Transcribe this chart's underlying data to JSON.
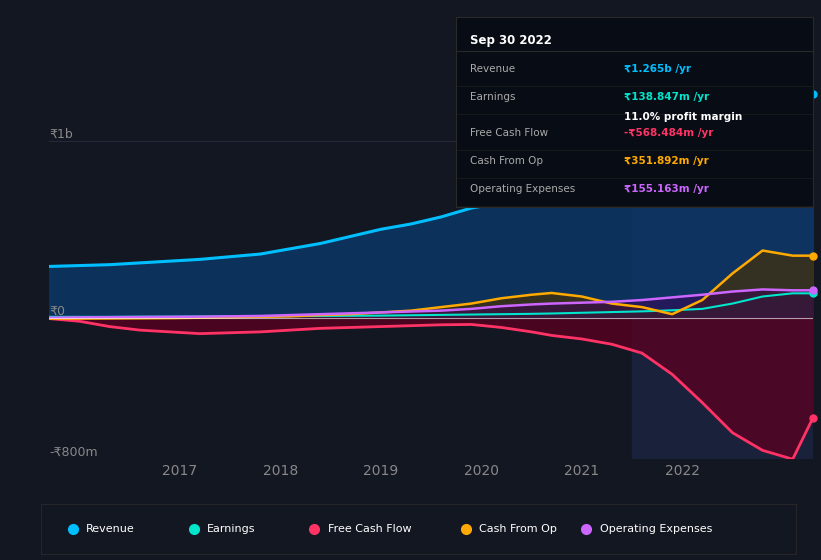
{
  "bg_color": "#131722",
  "info_box": {
    "date": "Sep 30 2022",
    "revenue_label": "Revenue",
    "revenue_val": "₹1.265b /yr",
    "revenue_color": "#00bfff",
    "earnings_label": "Earnings",
    "earnings_val": "₹138.847m /yr",
    "earnings_color": "#00e5cc",
    "margin_val": "11.0% profit margin",
    "margin_color": "#ffffff",
    "fcf_label": "Free Cash Flow",
    "fcf_val": "-₹568.484m /yr",
    "fcf_color": "#ff3366",
    "cashop_label": "Cash From Op",
    "cashop_val": "₹351.892m /yr",
    "cashop_color": "#ffaa00",
    "opex_label": "Operating Expenses",
    "opex_val": "₹155.163m /yr",
    "opex_color": "#cc66ff"
  },
  "ylim": [
    -800,
    1100
  ],
  "xlim": [
    2015.7,
    2023.3
  ],
  "xtick_labels": [
    "2017",
    "2018",
    "2019",
    "2020",
    "2021",
    "2022"
  ],
  "xtick_vals": [
    2017,
    2018,
    2019,
    2020,
    2021,
    2022
  ],
  "highlight_start": 2021.5,
  "highlight_end": 2023.3,
  "revenue_color": "#00bfff",
  "earnings_color": "#00e5cc",
  "fcf_color": "#ff3366",
  "cashop_color": "#ffaa00",
  "opex_color": "#cc66ff",
  "revenue_x": [
    2015.7,
    2016.0,
    2016.3,
    2016.6,
    2016.9,
    2017.2,
    2017.5,
    2017.8,
    2018.1,
    2018.4,
    2018.7,
    2019.0,
    2019.3,
    2019.6,
    2019.9,
    2020.2,
    2020.5,
    2020.7,
    2021.0,
    2021.3,
    2021.6,
    2021.9,
    2022.2,
    2022.5,
    2022.8,
    2023.1,
    2023.3
  ],
  "revenue_y": [
    290,
    295,
    300,
    310,
    320,
    330,
    345,
    360,
    390,
    420,
    460,
    500,
    530,
    570,
    620,
    650,
    660,
    650,
    670,
    700,
    760,
    830,
    940,
    1050,
    1230,
    1265,
    1265
  ],
  "earnings_x": [
    2015.7,
    2016.0,
    2016.3,
    2016.6,
    2016.9,
    2017.2,
    2017.5,
    2017.8,
    2018.1,
    2018.4,
    2018.7,
    2019.0,
    2019.3,
    2019.6,
    2019.9,
    2020.2,
    2020.5,
    2020.7,
    2021.0,
    2021.3,
    2021.6,
    2021.9,
    2022.2,
    2022.5,
    2022.8,
    2023.1,
    2023.3
  ],
  "earnings_y": [
    5,
    5,
    5,
    6,
    6,
    7,
    8,
    8,
    9,
    10,
    11,
    12,
    14,
    16,
    18,
    20,
    22,
    24,
    28,
    32,
    36,
    42,
    50,
    80,
    120,
    138,
    138
  ],
  "fcf_x": [
    2015.7,
    2016.0,
    2016.3,
    2016.6,
    2016.9,
    2017.2,
    2017.5,
    2017.8,
    2018.1,
    2018.4,
    2018.7,
    2019.0,
    2019.3,
    2019.6,
    2019.9,
    2020.2,
    2020.5,
    2020.7,
    2021.0,
    2021.3,
    2021.6,
    2021.9,
    2022.2,
    2022.5,
    2022.8,
    2023.1,
    2023.3
  ],
  "fcf_y": [
    -5,
    -20,
    -50,
    -70,
    -80,
    -90,
    -85,
    -80,
    -70,
    -60,
    -55,
    -50,
    -45,
    -40,
    -38,
    -55,
    -80,
    -100,
    -120,
    -150,
    -200,
    -320,
    -480,
    -650,
    -750,
    -800,
    -568
  ],
  "cashop_x": [
    2015.7,
    2016.0,
    2016.3,
    2016.6,
    2016.9,
    2017.2,
    2017.5,
    2017.8,
    2018.1,
    2018.4,
    2018.7,
    2019.0,
    2019.3,
    2019.6,
    2019.9,
    2020.2,
    2020.5,
    2020.7,
    2021.0,
    2021.3,
    2021.6,
    2021.9,
    2022.2,
    2022.5,
    2022.8,
    2023.1,
    2023.3
  ],
  "cashop_y": [
    -5,
    -5,
    -4,
    -3,
    -2,
    0,
    2,
    5,
    8,
    15,
    20,
    30,
    40,
    60,
    80,
    110,
    130,
    140,
    120,
    80,
    60,
    20,
    100,
    250,
    380,
    351,
    351
  ],
  "opex_x": [
    2015.7,
    2016.0,
    2016.3,
    2016.6,
    2016.9,
    2017.2,
    2017.5,
    2017.8,
    2018.1,
    2018.4,
    2018.7,
    2019.0,
    2019.3,
    2019.6,
    2019.9,
    2020.2,
    2020.5,
    2020.7,
    2021.0,
    2021.3,
    2021.6,
    2021.9,
    2022.2,
    2022.5,
    2022.8,
    2023.1,
    2023.3
  ],
  "opex_y": [
    0,
    2,
    3,
    4,
    5,
    6,
    8,
    10,
    15,
    20,
    25,
    30,
    35,
    40,
    50,
    65,
    75,
    80,
    85,
    90,
    100,
    115,
    130,
    148,
    160,
    155,
    155
  ],
  "legend_items": [
    "Revenue",
    "Earnings",
    "Free Cash Flow",
    "Cash From Op",
    "Operating Expenses"
  ],
  "legend_colors": [
    "#00bfff",
    "#00e5cc",
    "#ff3366",
    "#ffaa00",
    "#cc66ff"
  ]
}
